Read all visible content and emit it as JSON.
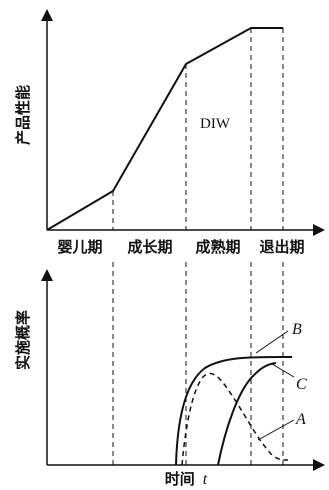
{
  "top_panel": {
    "y_axis_label": "产品性能",
    "region_label": "DIW"
  },
  "stages": [
    "婴儿期",
    "成长期",
    "成熟期",
    "退出期"
  ],
  "bottom_panel": {
    "y_axis_label": "实施概率",
    "x_axis_label": "时间",
    "x_axis_var": "t",
    "curve_labels": [
      "B",
      "C",
      "A"
    ]
  }
}
